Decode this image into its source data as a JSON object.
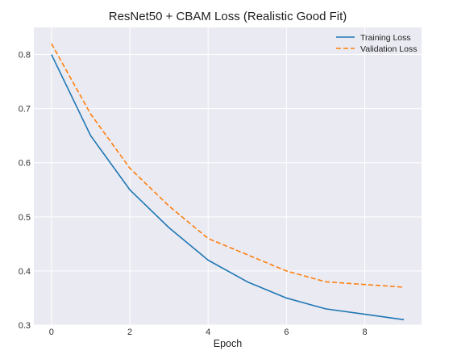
{
  "chart_data": {
    "type": "line",
    "title": "ResNet50 + CBAM Loss (Realistic Good Fit)",
    "xlabel": "Epoch",
    "ylabel": "",
    "x": [
      0,
      1,
      2,
      3,
      4,
      5,
      6,
      7,
      8,
      9
    ],
    "xlim": [
      -0.45,
      9.45
    ],
    "ylim": [
      0.3,
      0.85
    ],
    "xticks": [
      0,
      2,
      4,
      6,
      8
    ],
    "yticks": [
      0.3,
      0.4,
      0.5,
      0.6,
      0.7,
      0.8
    ],
    "xtick_labels": [
      "0",
      "2",
      "4",
      "6",
      "8"
    ],
    "ytick_labels": [
      "0.3",
      "0.4",
      "0.5",
      "0.6",
      "0.7",
      "0.8"
    ],
    "grid": true,
    "legend_position": "top-right",
    "background_color": "#eaeaf2",
    "series": [
      {
        "name": "Training Loss",
        "color": "#1f77b4",
        "style": "solid",
        "values": [
          0.8,
          0.65,
          0.55,
          0.48,
          0.42,
          0.38,
          0.35,
          0.33,
          0.32,
          0.31
        ]
      },
      {
        "name": "Validation Loss",
        "color": "#ff7f0e",
        "style": "dashed",
        "values": [
          0.82,
          0.69,
          0.59,
          0.52,
          0.46,
          0.43,
          0.4,
          0.38,
          0.375,
          0.37
        ]
      }
    ]
  }
}
